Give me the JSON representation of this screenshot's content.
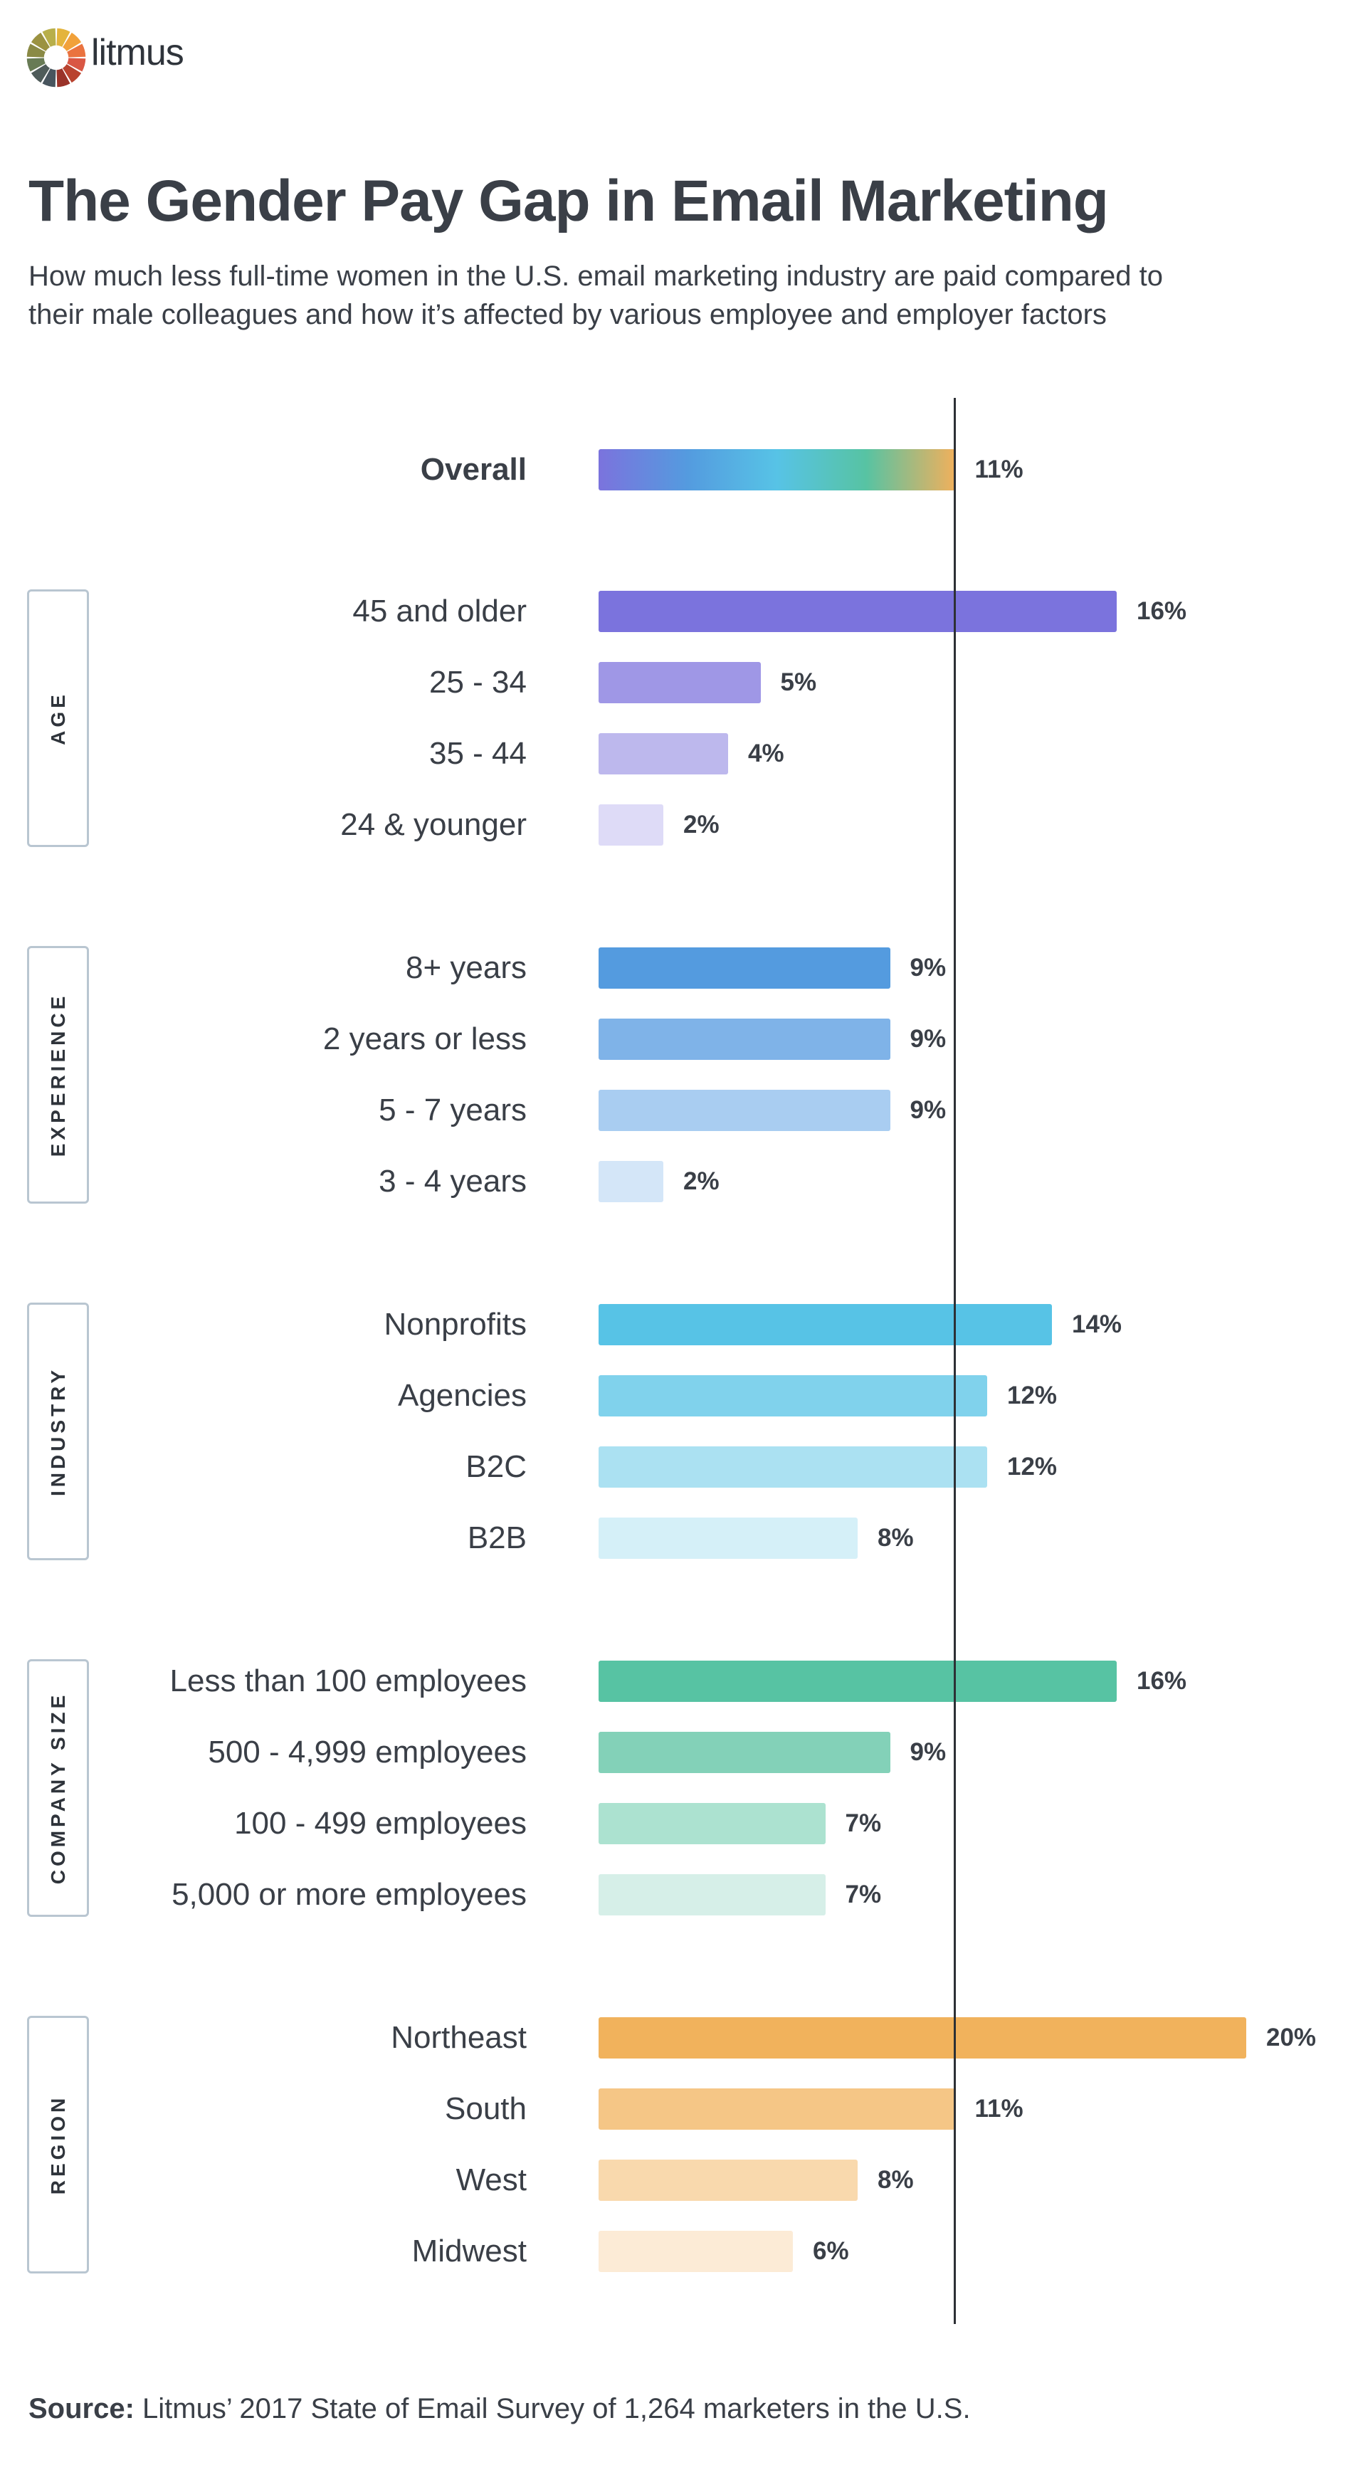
{
  "brand": {
    "name": "litmus",
    "logo_colors": [
      "#e4b43c",
      "#f1a13a",
      "#ea733f",
      "#d95744",
      "#b9432f",
      "#9a3329",
      "#48555e",
      "#4f5c5a",
      "#687b55",
      "#8a8a45",
      "#9b9241",
      "#b8af4a"
    ]
  },
  "header": {
    "title": "The Gender Pay Gap in Email Marketing",
    "subtitle_line1": "How much less full-time women in the U.S. email marketing industry are paid compared to",
    "subtitle_line2": "their male colleagues and how it’s affected by various employee and employer factors"
  },
  "chart_data": {
    "type": "bar",
    "orientation": "horizontal",
    "unit": "%",
    "reference_line": 11,
    "overall": {
      "label": "Overall",
      "value": 11,
      "display": "11%",
      "gradient": [
        "#7b73dd",
        "#549bdf",
        "#57c3e6",
        "#57c3a3",
        "#f0b05c"
      ]
    },
    "groups": [
      {
        "name": "AGE",
        "colors": [
          "#7b73dd",
          "#9f97e6",
          "#bdb8ed",
          "#dedbf7"
        ],
        "categories": [
          "45 and older",
          "25 - 34",
          "35 - 44",
          "24 & younger"
        ],
        "values": [
          16,
          5,
          4,
          2
        ],
        "labels": [
          "16%",
          "5%",
          "4%",
          "2%"
        ]
      },
      {
        "name": "EXPERIENCE",
        "colors": [
          "#549bdf",
          "#7fb3e8",
          "#a9cdf1",
          "#d4e6f8"
        ],
        "categories": [
          "8+ years",
          "2 years or less",
          "5 - 7 years",
          "3 - 4 years"
        ],
        "values": [
          9,
          9,
          9,
          2
        ],
        "labels": [
          "9%",
          "9%",
          "9%",
          "2%"
        ]
      },
      {
        "name": "INDUSTRY",
        "colors": [
          "#57c3e6",
          "#80d2ec",
          "#abe1f2",
          "#d5f0f8"
        ],
        "categories": [
          "Nonprofits",
          "Agencies",
          "B2C",
          "B2B"
        ],
        "values": [
          14,
          12,
          12,
          8
        ],
        "labels": [
          "14%",
          "12%",
          "12%",
          "8%"
        ]
      },
      {
        "name": "COMPANY SIZE",
        "colors": [
          "#57c3a3",
          "#83d1b8",
          "#ace2d0",
          "#d6efe8"
        ],
        "categories": [
          "Less than 100 employees",
          "500 - 4,999 employees",
          "100 - 499 employees",
          "5,000 or more employees"
        ],
        "values": [
          16,
          9,
          7,
          7
        ],
        "labels": [
          "16%",
          "9%",
          "7%",
          "7%"
        ]
      },
      {
        "name": "REGION",
        "colors": [
          "#f1b25c",
          "#f5c686",
          "#f9d9ad",
          "#fcebd6"
        ],
        "categories": [
          "Northeast",
          "South",
          "West",
          "Midwest"
        ],
        "values": [
          20,
          11,
          8,
          6
        ],
        "labels": [
          "20%",
          "11%",
          "8%",
          "6%"
        ]
      }
    ]
  },
  "footer": {
    "source_label": "Source:",
    "source_text": " Litmus’ 2017 State of Email Survey of 1,264 marketers in the U.S."
  }
}
